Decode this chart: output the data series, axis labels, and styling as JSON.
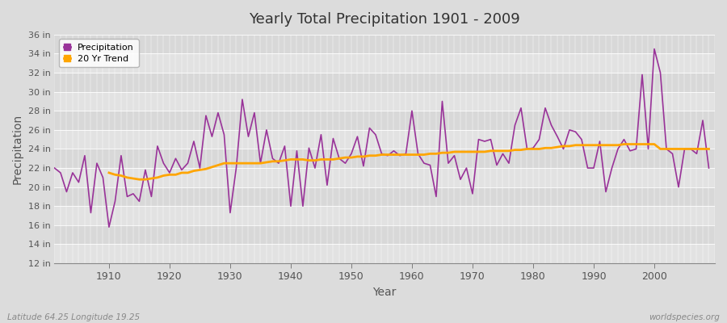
{
  "title": "Yearly Total Precipitation 1901 - 2009",
  "xlabel": "Year",
  "ylabel": "Precipitation",
  "footer_left": "Latitude 64.25 Longitude 19.25",
  "footer_right": "worldspecies.org",
  "precip_color": "#993399",
  "trend_color": "#FFA500",
  "bg_color": "#DCDCDC",
  "plot_bg_color": "#E8E8E8",
  "band_color_1": "#E2E2E2",
  "band_color_2": "#D8D8D8",
  "ylim": [
    12,
    36
  ],
  "yticks": [
    12,
    14,
    16,
    18,
    20,
    22,
    24,
    26,
    28,
    30,
    32,
    34,
    36
  ],
  "xlim": [
    1901,
    2010
  ],
  "xticks": [
    1910,
    1920,
    1930,
    1940,
    1950,
    1960,
    1970,
    1980,
    1990,
    2000
  ],
  "years": [
    1901,
    1902,
    1903,
    1904,
    1905,
    1906,
    1907,
    1908,
    1909,
    1910,
    1911,
    1912,
    1913,
    1914,
    1915,
    1916,
    1917,
    1918,
    1919,
    1920,
    1921,
    1922,
    1923,
    1924,
    1925,
    1926,
    1927,
    1928,
    1929,
    1930,
    1931,
    1932,
    1933,
    1934,
    1935,
    1936,
    1937,
    1938,
    1939,
    1940,
    1941,
    1942,
    1943,
    1944,
    1945,
    1946,
    1947,
    1948,
    1949,
    1950,
    1951,
    1952,
    1953,
    1954,
    1955,
    1956,
    1957,
    1958,
    1959,
    1960,
    1961,
    1962,
    1963,
    1964,
    1965,
    1966,
    1967,
    1968,
    1969,
    1970,
    1971,
    1972,
    1973,
    1974,
    1975,
    1976,
    1977,
    1978,
    1979,
    1980,
    1981,
    1982,
    1983,
    1984,
    1985,
    1986,
    1987,
    1988,
    1989,
    1990,
    1991,
    1992,
    1993,
    1994,
    1995,
    1996,
    1997,
    1998,
    1999,
    2000,
    2001,
    2002,
    2003,
    2004,
    2005,
    2006,
    2007,
    2008,
    2009
  ],
  "precip": [
    22.0,
    21.5,
    19.5,
    21.5,
    20.5,
    23.3,
    17.3,
    22.5,
    21.0,
    15.8,
    18.5,
    23.3,
    19.0,
    19.3,
    18.5,
    21.8,
    19.0,
    24.3,
    22.5,
    21.5,
    23.0,
    21.8,
    22.5,
    24.8,
    22.0,
    27.5,
    25.3,
    27.8,
    25.5,
    17.3,
    22.0,
    29.2,
    25.3,
    27.8,
    22.5,
    26.0,
    23.0,
    22.5,
    24.3,
    18.0,
    23.8,
    18.0,
    24.1,
    22.0,
    25.5,
    20.2,
    25.1,
    23.0,
    22.5,
    23.5,
    25.3,
    22.2,
    26.2,
    25.5,
    23.5,
    23.3,
    23.8,
    23.3,
    23.5,
    28.0,
    23.5,
    22.5,
    22.3,
    19.0,
    29.0,
    22.5,
    23.3,
    20.8,
    22.0,
    19.3,
    25.0,
    24.8,
    25.0,
    22.3,
    23.5,
    22.5,
    26.5,
    28.3,
    24.0,
    24.1,
    25.0,
    28.3,
    26.5,
    25.3,
    24.0,
    26.0,
    25.8,
    25.0,
    22.0,
    22.0,
    24.8,
    19.5,
    22.0,
    24.0,
    25.0,
    23.8,
    24.0,
    31.8,
    24.0,
    34.5,
    32.0,
    24.0,
    23.5,
    20.0,
    24.0,
    24.0,
    23.5,
    27.0,
    22.0
  ],
  "trend": [
    null,
    null,
    null,
    null,
    null,
    null,
    null,
    null,
    null,
    21.5,
    21.3,
    21.2,
    21.0,
    20.9,
    20.8,
    20.8,
    20.9,
    21.0,
    21.2,
    21.3,
    21.3,
    21.5,
    21.5,
    21.7,
    21.8,
    21.9,
    22.1,
    22.3,
    22.5,
    22.5,
    22.5,
    22.5,
    22.5,
    22.5,
    22.5,
    22.6,
    22.7,
    22.7,
    22.8,
    22.9,
    22.9,
    22.9,
    22.8,
    22.8,
    22.9,
    22.9,
    22.9,
    23.0,
    23.1,
    23.1,
    23.2,
    23.2,
    23.3,
    23.3,
    23.4,
    23.4,
    23.4,
    23.4,
    23.4,
    23.4,
    23.4,
    23.4,
    23.5,
    23.5,
    23.6,
    23.6,
    23.7,
    23.7,
    23.7,
    23.7,
    23.7,
    23.7,
    23.8,
    23.8,
    23.8,
    23.8,
    23.9,
    23.9,
    24.0,
    24.0,
    24.0,
    24.1,
    24.1,
    24.2,
    24.3,
    24.3,
    24.4,
    24.4,
    24.4,
    24.4,
    24.4,
    24.4,
    24.4,
    24.4,
    24.5,
    24.5,
    24.5,
    24.5,
    24.5,
    24.5,
    24.0,
    24.0,
    24.0,
    24.0,
    24.0,
    24.0,
    24.0,
    24.0,
    24.0
  ]
}
